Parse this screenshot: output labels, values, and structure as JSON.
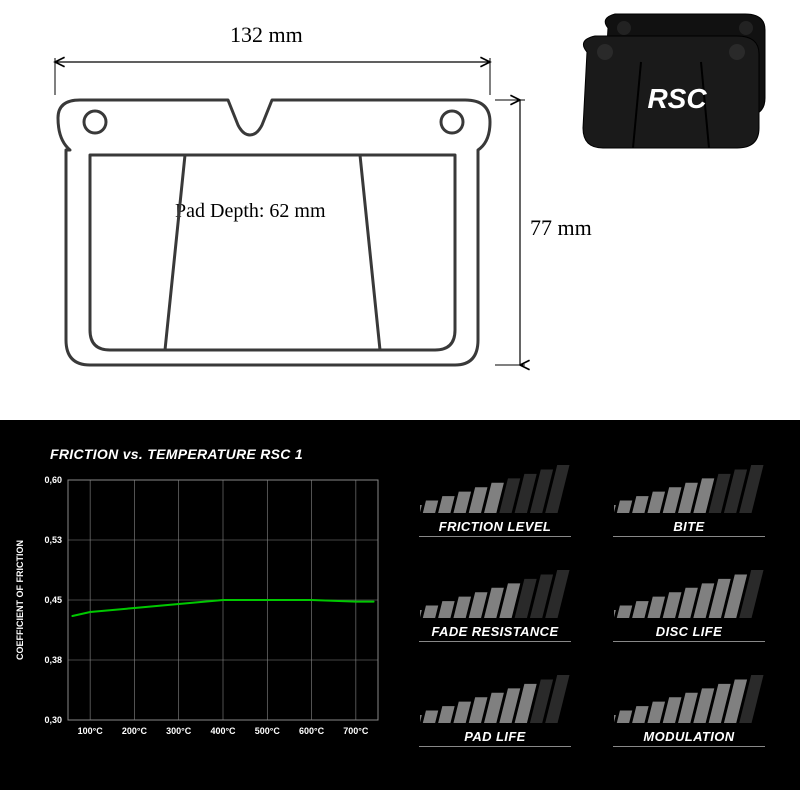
{
  "diagram": {
    "width_label": "132 mm",
    "height_label": "77 mm",
    "depth_label": "Pad Depth: 62 mm",
    "stroke_color": "#393939",
    "stroke_width": 3,
    "label_fontsize": 22
  },
  "product_logo": "RSC",
  "chart": {
    "title": "FRICTION vs. TEMPERATURE RSC 1",
    "ylabel": "COEFFICIENT OF FRICTION",
    "x_ticks": [
      "100°C",
      "200°C",
      "300°C",
      "400°C",
      "500°C",
      "600°C",
      "700°C"
    ],
    "y_ticks": [
      "0,30",
      "0,38",
      "0,45",
      "0,53",
      "0,60"
    ],
    "xlim": [
      50,
      750
    ],
    "ylim": [
      0.3,
      0.6
    ],
    "line_color": "#00c800",
    "line_width": 2,
    "grid_color": "#888888",
    "background_color": "#000000",
    "label_fontsize": 9,
    "series": {
      "x": [
        60,
        100,
        200,
        300,
        400,
        500,
        600,
        700,
        740
      ],
      "y": [
        0.43,
        0.435,
        0.44,
        0.445,
        0.45,
        0.45,
        0.45,
        0.448,
        0.448
      ]
    }
  },
  "ratings": {
    "bar_count": 10,
    "active_color": "#808080",
    "inactive_color": "#2a2a2a",
    "items": [
      {
        "label": "FRICTION LEVEL",
        "value": 6
      },
      {
        "label": "BITE",
        "value": 7
      },
      {
        "label": "FADE RESISTANCE",
        "value": 7
      },
      {
        "label": "DISC LIFE",
        "value": 9
      },
      {
        "label": "PAD LIFE",
        "value": 8
      },
      {
        "label": "MODULATION",
        "value": 9
      }
    ]
  }
}
